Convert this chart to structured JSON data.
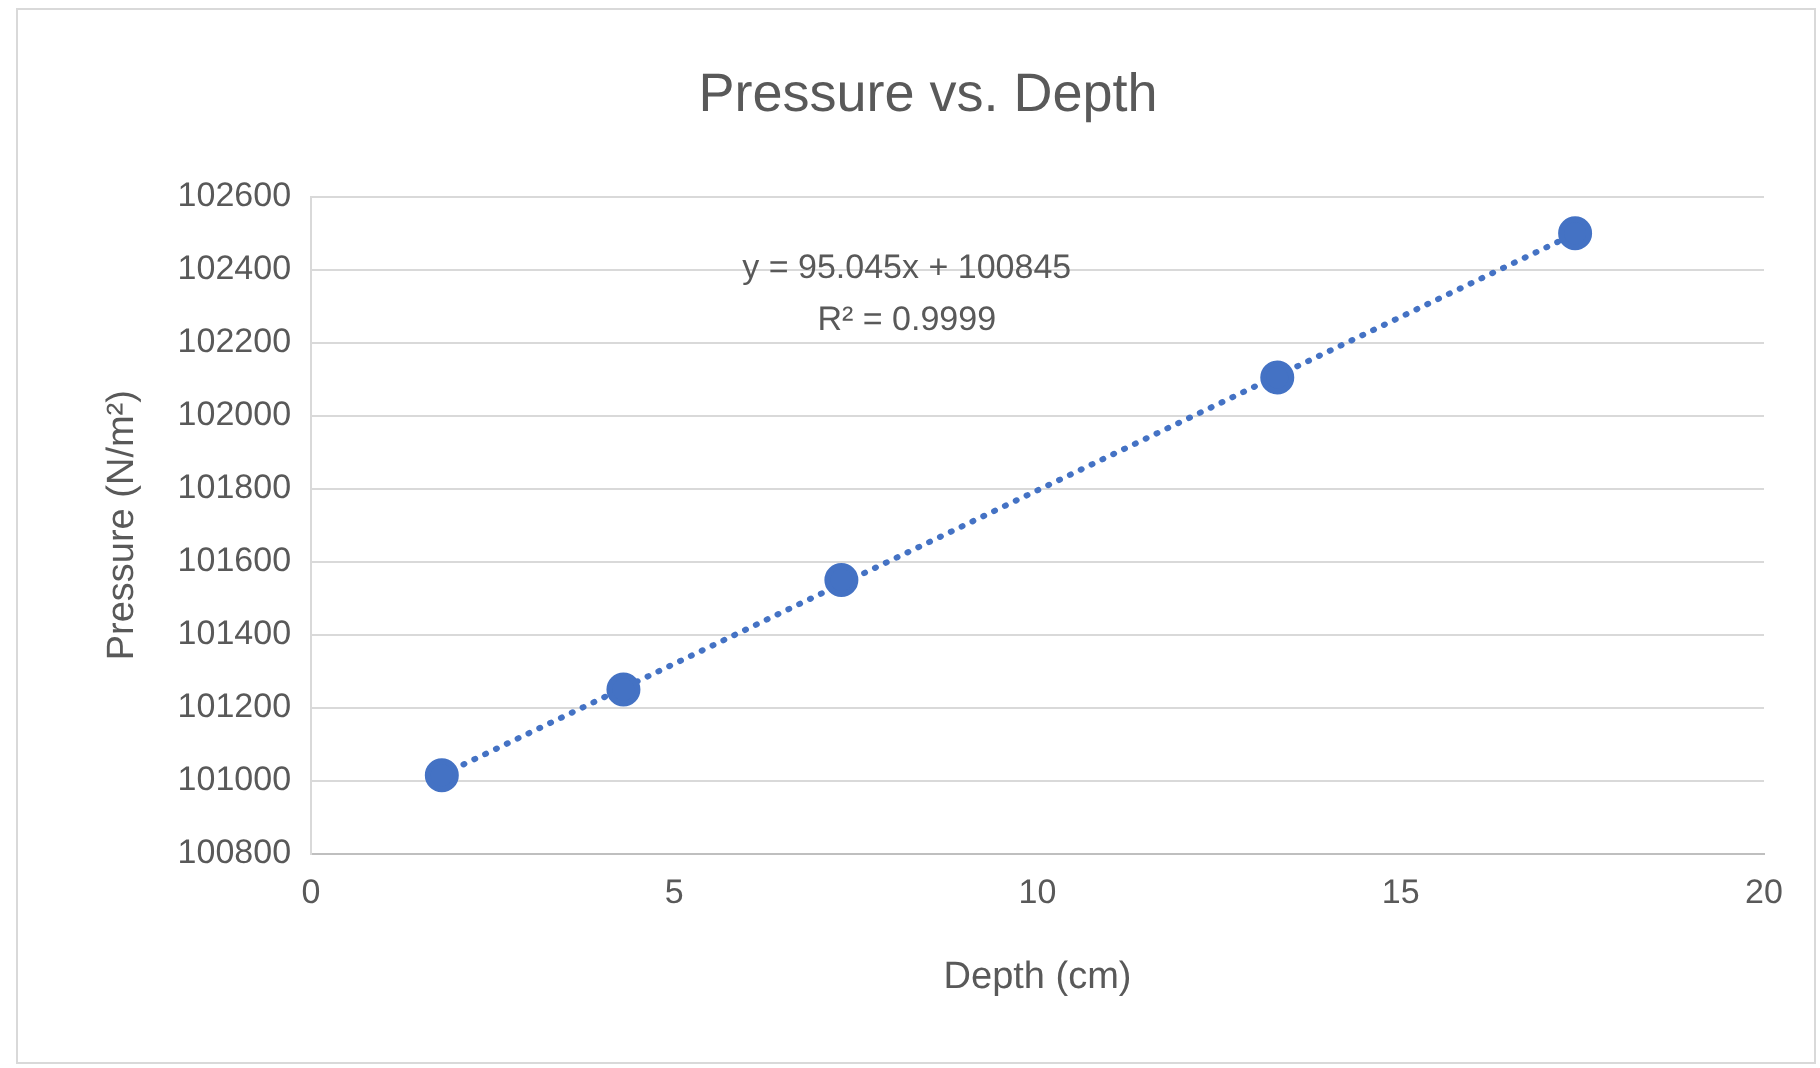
{
  "chart_data": {
    "type": "scatter",
    "title": "Pressure vs. Depth",
    "xlabel": "Depth (cm)",
    "ylabel": "Pressure (N/m²)",
    "xlim": [
      0,
      20
    ],
    "xticks": [
      0,
      5,
      10,
      15,
      20
    ],
    "ylim": [
      100800,
      102600
    ],
    "yticks": [
      100800,
      101000,
      101200,
      101400,
      101600,
      101800,
      102000,
      102200,
      102400,
      102600
    ],
    "grid": "y",
    "legend": false,
    "marker": "circle",
    "series": [
      {
        "type": "scatter",
        "color": "#4472c4",
        "x": [
          1.8,
          4.3,
          7.3,
          13.3,
          17.4
        ],
        "values": [
          101015,
          101250,
          101550,
          102105,
          102500
        ]
      },
      {
        "type": "line",
        "color": "#4472c4",
        "line_style": "dotted",
        "marker": "none",
        "x": [
          1.8,
          17.4
        ],
        "values": [
          101016,
          102499
        ]
      }
    ],
    "annotations": [
      "y = 95.045x + 100845",
      "R² = 0.9999"
    ]
  }
}
